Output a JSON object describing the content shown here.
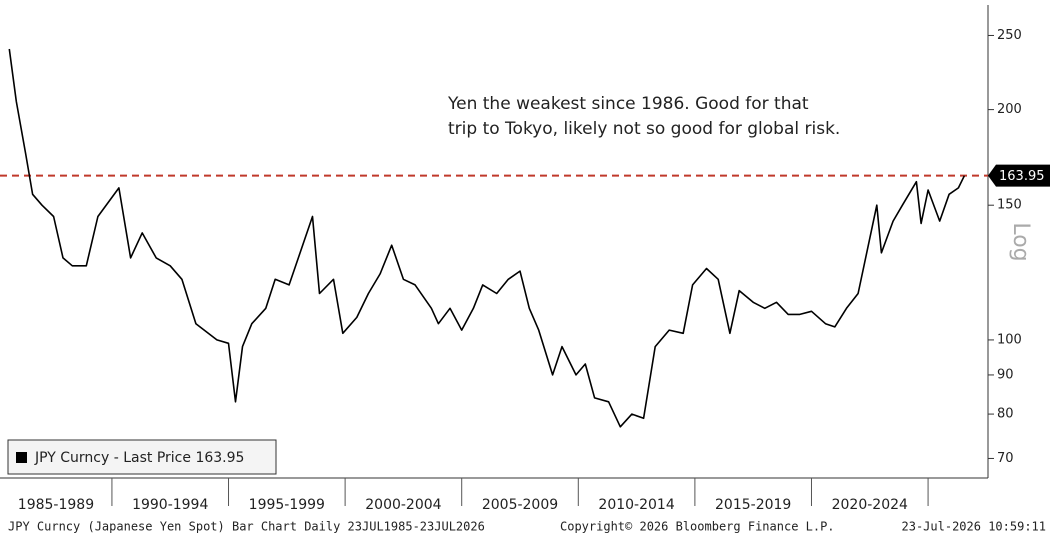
{
  "chart_data": {
    "type": "line",
    "annotation": [
      "Yen the weakest since 1986. Good for that",
      "trip to Tokyo, likely not so good for global risk."
    ],
    "scale_label": "Log",
    "log_scale": true,
    "footer_left": "JPY Curncy (Japanese Yen Spot) Bar Chart Daily 23JUL1985-23JUL2026",
    "footer_center": "Copyright© 2026 Bloomberg Finance L.P.",
    "footer_right": "23-Jul-2026 10:59:11",
    "last_price": 163.95,
    "reference_color": "#c0392b",
    "periods": [
      {
        "label": "1985-1989",
        "start": 1985.2,
        "end": 1990
      },
      {
        "label": "1990-1994",
        "start": 1990,
        "end": 1995
      },
      {
        "label": "1995-1999",
        "start": 1995,
        "end": 2000
      },
      {
        "label": "2000-2004",
        "start": 2000,
        "end": 2005
      },
      {
        "label": "2005-2009",
        "start": 2005,
        "end": 2010
      },
      {
        "label": "2010-2014",
        "start": 2010,
        "end": 2015
      },
      {
        "label": "2015-2019",
        "start": 2015,
        "end": 2020
      },
      {
        "label": "2020-2024",
        "start": 2020,
        "end": 2025
      }
    ],
    "xlim": [
      1985.2,
      2027.57
    ],
    "ylim": [
      66,
      274
    ],
    "yticks": [
      70,
      80,
      90,
      100,
      150,
      200,
      250
    ],
    "x": [
      1985.6,
      1985.9,
      1986.3,
      1986.6,
      1987.0,
      1987.5,
      1987.9,
      1988.3,
      1988.9,
      1989.4,
      1990.3,
      1990.8,
      1991.3,
      1991.9,
      1992.5,
      1993.0,
      1993.6,
      1994.5,
      1995.0,
      1995.3,
      1995.6,
      1996.0,
      1996.6,
      1997.0,
      1997.6,
      1998.6,
      1998.9,
      1999.5,
      1999.9,
      2000.5,
      2001.0,
      2001.5,
      2002.0,
      2002.5,
      2003.0,
      2003.7,
      2004.0,
      2004.5,
      2005.0,
      2005.5,
      2005.9,
      2006.5,
      2007.0,
      2007.5,
      2007.9,
      2008.3,
      2008.9,
      2009.3,
      2009.9,
      2010.3,
      2010.7,
      2011.3,
      2011.8,
      2012.3,
      2012.8,
      2013.3,
      2013.9,
      2014.5,
      2014.9,
      2015.5,
      2016.0,
      2016.5,
      2016.9,
      2017.5,
      2018.0,
      2018.5,
      2019.0,
      2019.5,
      2020.0,
      2020.6,
      2021.0,
      2021.5,
      2022.0,
      2022.8,
      2023.0,
      2023.5,
      2023.9,
      2024.5,
      2024.7,
      2025.0,
      2025.5,
      2025.9,
      2026.3,
      2026.56
    ],
    "series": [
      {
        "name": "JPY Curncy - Last Price",
        "color": "#000000",
        "values": [
          240,
          205,
          175,
          155,
          150,
          145,
          128,
          125,
          125,
          145,
          158,
          128,
          138,
          128,
          125,
          120,
          105,
          100,
          99,
          83,
          98,
          105,
          110,
          120,
          118,
          145,
          115,
          120,
          102,
          107,
          115,
          122,
          133,
          120,
          118,
          110,
          105,
          110,
          103,
          110,
          118,
          115,
          120,
          123,
          110,
          103,
          90,
          98,
          90,
          93,
          84,
          83,
          77,
          80,
          79,
          98,
          103,
          102,
          118,
          124,
          120,
          102,
          116,
          112,
          110,
          112,
          108,
          108,
          109,
          105,
          104,
          110,
          115,
          150,
          130,
          143,
          150,
          161,
          142,
          157,
          143,
          155,
          158,
          163.95
        ]
      }
    ]
  }
}
